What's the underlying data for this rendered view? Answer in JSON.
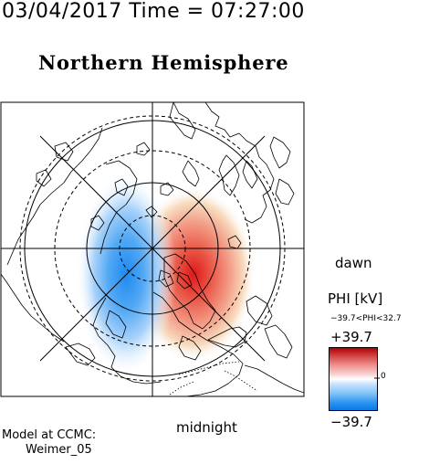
{
  "header": {
    "timestamp": "03/04/2017 Time = 07:27:00",
    "hemisphere": "Northern Hemisphere"
  },
  "map": {
    "dawn_label": "dawn",
    "midnight_label": "midnight",
    "pattern": {
      "type": "two-cell electric potential",
      "positive_cell": "dawn-midnight sector, red",
      "negative_cell": "dusk-midnight sector, blue"
    }
  },
  "colorbar": {
    "title": "PHI [kV]",
    "range_text": "−39.7<PHI<32.7",
    "max_label": "+39.7",
    "min_label": "−39.7",
    "zero_label": "0",
    "max_value": 39.7,
    "min_value": -39.7,
    "colors": {
      "positive": "#c00000",
      "zero": "#ffffff",
      "negative": "#0a78e8"
    }
  },
  "footer": {
    "model_text": "Model at CCMC:",
    "model_name": "Weimer_05"
  }
}
